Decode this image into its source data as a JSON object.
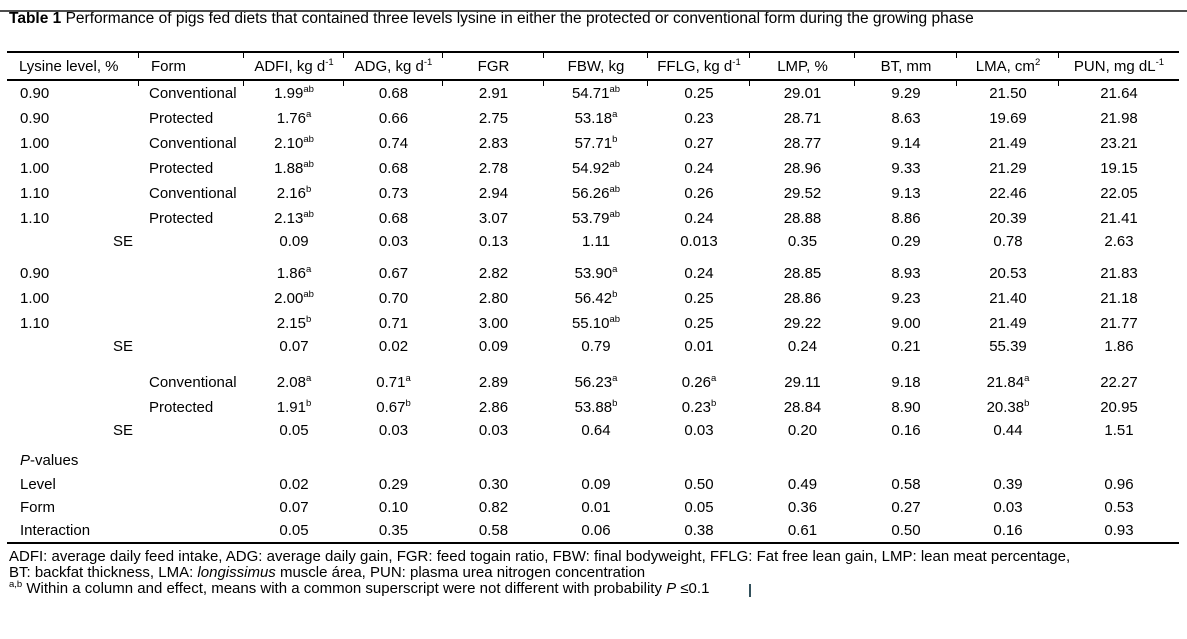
{
  "page": {
    "title_bold": "Table 1",
    "title_rest": " Performance of pigs fed diets that contained three levels lysine in either the protected or conventional form during the growing phase"
  },
  "table": {
    "headers": [
      "Lysine level, %",
      "Form",
      "ADFI, kg d^-1",
      "ADG, kg d^-1",
      "FGR",
      "FBW, kg",
      "FFLG, kg d^-1",
      "LMP, %",
      "BT, mm",
      "LMA, cm^2",
      "PUN, mg dL^-1"
    ],
    "sections": [
      {
        "name": "treatment-means",
        "rows": [
          {
            "level": "0.90",
            "form": "Conventional",
            "values": [
              "1.99^ab",
              "0.68",
              "2.91",
              "54.71^ab",
              "0.25",
              "29.01",
              "9.29",
              "21.50",
              "21.64"
            ]
          },
          {
            "level": "0.90",
            "form": "Protected",
            "values": [
              "1.76^a",
              "0.66",
              "2.75",
              "53.18^a",
              "0.23",
              "28.71",
              "8.63",
              "19.69",
              "21.98"
            ]
          },
          {
            "level": "1.00",
            "form": "Conventional",
            "values": [
              "2.10^ab",
              "0.74",
              "2.83",
              "57.71^b",
              "0.27",
              "28.77",
              "9.14",
              "21.49",
              "23.21"
            ]
          },
          {
            "level": "1.00",
            "form": "Protected",
            "values": [
              "1.88^ab",
              "0.68",
              "2.78",
              "54.92^ab",
              "0.24",
              "28.96",
              "9.33",
              "21.29",
              "19.15"
            ]
          },
          {
            "level": "1.10",
            "form": "Conventional",
            "values": [
              "2.16^b",
              "0.73",
              "2.94",
              "56.26^ab",
              "0.26",
              "29.52",
              "9.13",
              "22.46",
              "22.05"
            ]
          },
          {
            "level": "1.10",
            "form": "Protected",
            "values": [
              "2.13^ab",
              "0.68",
              "3.07",
              "53.79^ab",
              "0.24",
              "28.88",
              "8.86",
              "20.39",
              "21.41"
            ]
          },
          {
            "se": "SE",
            "values": [
              "0.09",
              "0.03",
              "0.13",
              "1.11",
              "0.013",
              "0.35",
              "0.29",
              "0.78",
              "2.63"
            ]
          }
        ]
      },
      {
        "name": "level-means",
        "rows": [
          {
            "level": "0.90",
            "values": [
              "1.86^a",
              "0.67",
              "2.82",
              "53.90^a",
              "0.24",
              "28.85",
              "8.93",
              "20.53",
              "21.83"
            ]
          },
          {
            "level": "1.00",
            "values": [
              "2.00^ab",
              "0.70",
              "2.80",
              "56.42^b",
              "0.25",
              "28.86",
              "9.23",
              "21.40",
              "21.18"
            ]
          },
          {
            "level": "1.10",
            "values": [
              "2.15^b",
              "0.71",
              "3.00",
              "55.10^ab",
              "0.25",
              "29.22",
              "9.00",
              "21.49",
              "21.77"
            ]
          },
          {
            "se": "SE",
            "values": [
              "0.07",
              "0.02",
              "0.09",
              "0.79",
              "0.01",
              "0.24",
              "0.21",
              "55.39",
              "1.86"
            ]
          }
        ]
      },
      {
        "name": "form-means",
        "rows": [
          {
            "form": "Conventional",
            "values": [
              "2.08^a",
              "0.71^a",
              "2.89",
              "56.23^a",
              "0.26^a",
              "29.11",
              "9.18",
              "21.84^a",
              "22.27"
            ]
          },
          {
            "form": "Protected",
            "values": [
              "1.91^b",
              "0.67^b",
              "2.86",
              "53.88^b",
              "0.23^b",
              "28.84",
              "8.90",
              "20.38^b",
              "20.95"
            ]
          },
          {
            "se": "SE",
            "values": [
              "0.05",
              "0.03",
              "0.03",
              "0.64",
              "0.03",
              "0.20",
              "0.16",
              "0.44",
              "1.51"
            ]
          }
        ]
      },
      {
        "name": "p-values",
        "heading": [
          {
            "t": "P",
            "i": true
          },
          {
            "t": "-values"
          }
        ],
        "rows": [
          {
            "label": "Level",
            "values": [
              "0.02",
              "0.29",
              "0.30",
              "0.09",
              "0.50",
              "0.49",
              "0.58",
              "0.39",
              "0.96"
            ]
          },
          {
            "label": "Form",
            "values": [
              "0.07",
              "0.10",
              "0.82",
              "0.01",
              "0.05",
              "0.36",
              "0.27",
              "0.03",
              "0.53"
            ]
          },
          {
            "label": "Interaction",
            "values": [
              "0.05",
              "0.35",
              "0.58",
              "0.06",
              "0.38",
              "0.61",
              "0.50",
              "0.16",
              "0.93"
            ]
          }
        ]
      }
    ]
  },
  "footnotes": {
    "line1": [
      {
        "t": "ADFI: average daily feed intake, ADG: average daily gain, FGR: feed togain ratio, FBW: final bodyweight, FFLG: Fat free lean gain, LMP: lean meat percentage,"
      }
    ],
    "line2": [
      {
        "t": "BT: backfat thickness, LMA: "
      },
      {
        "t": "longissimus",
        "i": true
      },
      {
        "t": " muscle área, PUN: plasma urea nitrogen concentration"
      }
    ],
    "line3": [
      {
        "t": "a,b",
        "sup": true
      },
      {
        "t": " Within a column and effect, means with a common superscript were not different with probability "
      },
      {
        "t": "P",
        "i": true
      },
      {
        "t": " ≤0.1"
      }
    ]
  },
  "colors": {
    "background": "#ffffff",
    "text": "#000000",
    "rule": "#000000",
    "top_edge": "#4d4d4d",
    "cursor": "#33515c"
  }
}
